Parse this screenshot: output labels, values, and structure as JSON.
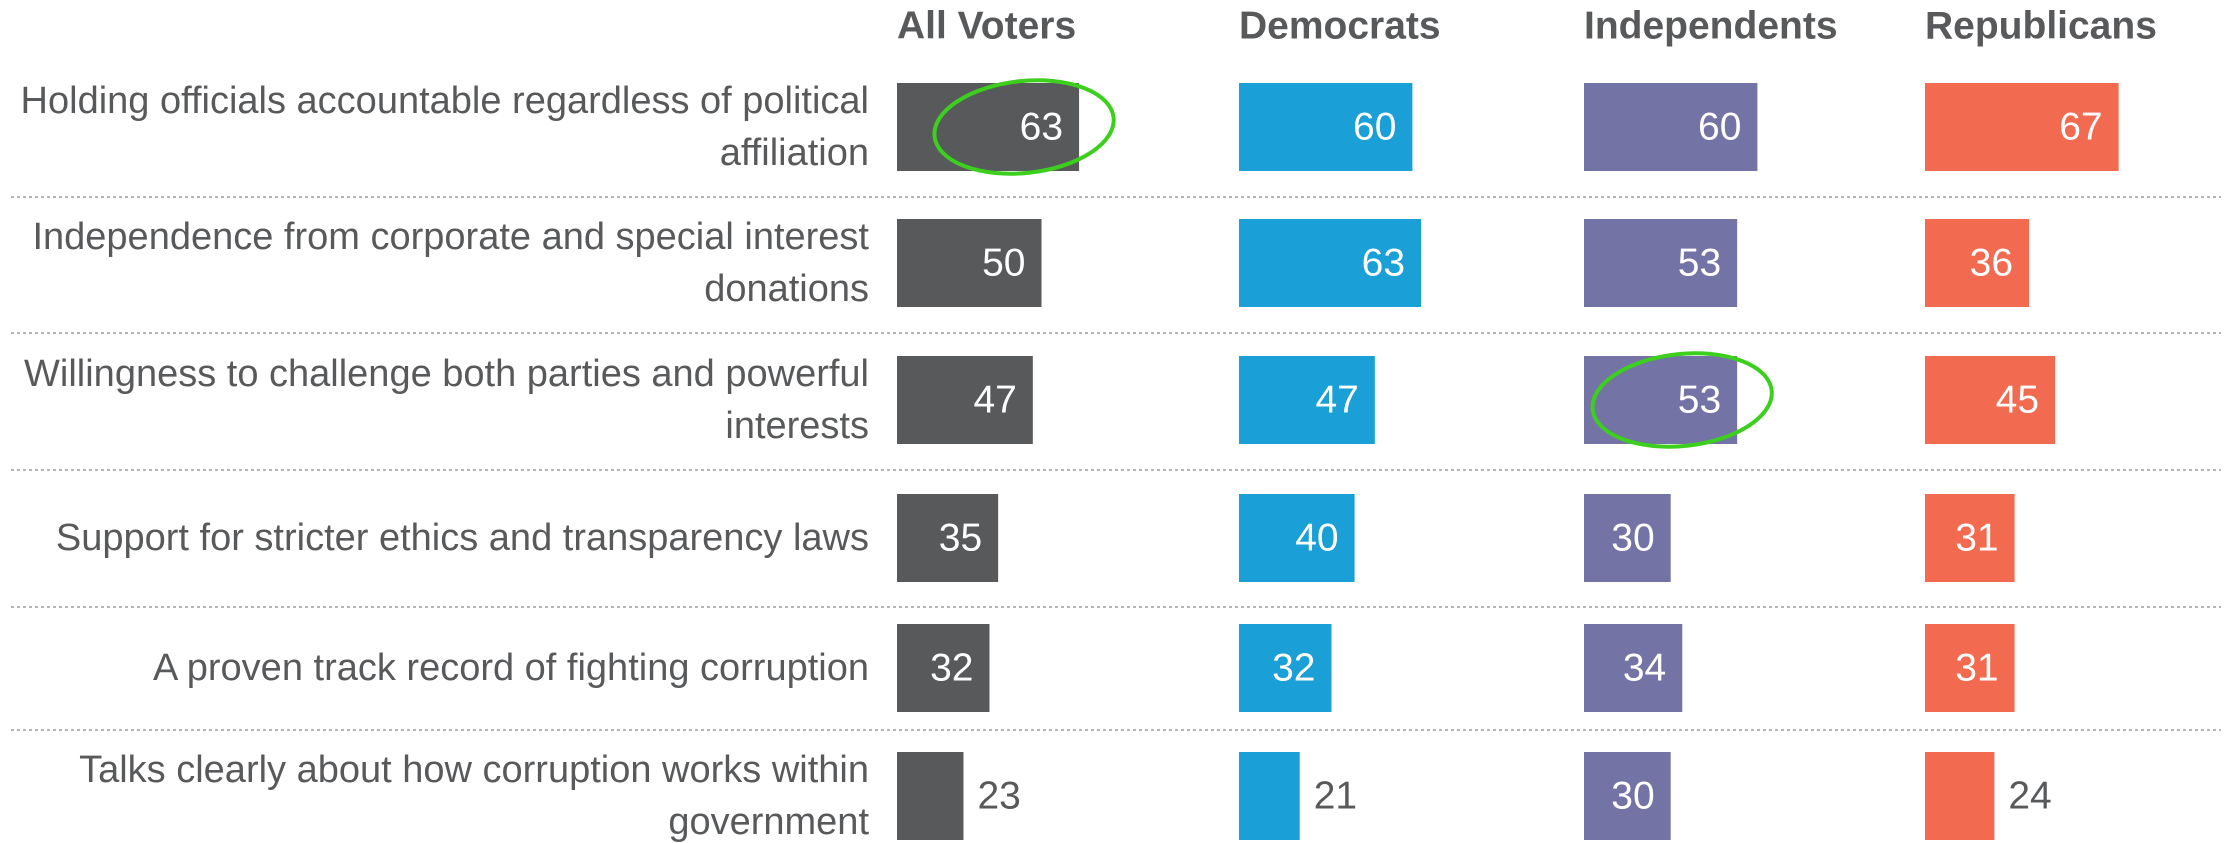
{
  "chart_data": {
    "type": "bar",
    "categories": [
      "Holding officials accountable regardless of political affiliation",
      "Independence from corporate and special interest donations",
      "Willingness to challenge both parties and powerful interests",
      "Support for stricter ethics and transparency laws",
      "A proven track record of fighting corruption",
      "Talks clearly about how corruption works within government"
    ],
    "series": [
      {
        "name": "All Voters",
        "color": "#58595b",
        "values": [
          63,
          50,
          47,
          35,
          32,
          23
        ]
      },
      {
        "name": "Democrats",
        "color": "#1a9fd6",
        "values": [
          60,
          63,
          47,
          40,
          32,
          21
        ]
      },
      {
        "name": "Independents",
        "color": "#7473a6",
        "values": [
          60,
          53,
          53,
          30,
          34,
          30
        ]
      },
      {
        "name": "Republicans",
        "color": "#f26b50",
        "values": [
          67,
          36,
          45,
          31,
          31,
          24
        ]
      }
    ],
    "highlights": [
      {
        "series": 0,
        "index": 0
      },
      {
        "series": 2,
        "index": 2
      }
    ],
    "highlight_color": "#3ccf1e"
  }
}
